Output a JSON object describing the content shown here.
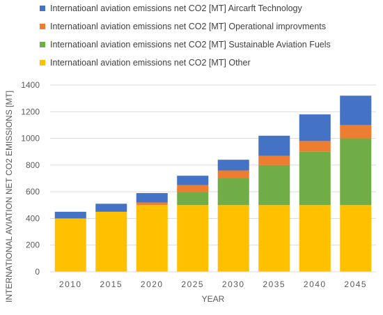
{
  "chart_data": {
    "type": "bar",
    "stacked": true,
    "categories": [
      "2010",
      "2015",
      "2020",
      "2025",
      "2030",
      "2035",
      "2040",
      "2045"
    ],
    "series": [
      {
        "name": "Internatioanl aviation emissions net CO2 [MT] Other",
        "color": "#FFC000",
        "values": [
          400,
          450,
          500,
          500,
          500,
          500,
          500,
          500
        ]
      },
      {
        "name": "Internatioanl aviation emissions net CO2 [MT] Sustainable Aviation Fuels",
        "color": "#70AD47",
        "values": [
          0,
          0,
          0,
          100,
          200,
          300,
          400,
          500
        ]
      },
      {
        "name": "Internatioanl aviation emissions net CO2 [MT] Operational improvments",
        "color": "#ED7D31",
        "values": [
          0,
          0,
          20,
          50,
          60,
          70,
          80,
          100
        ]
      },
      {
        "name": "Internatioanl aviation emissions net CO2 [MT] Aircarft Technology",
        "color": "#4472C4",
        "values": [
          50,
          60,
          70,
          70,
          80,
          150,
          200,
          220
        ]
      }
    ],
    "legend_order": [
      3,
      2,
      1,
      0
    ],
    "xlabel": "YEAR",
    "ylabel": "INTERNATIONAL AVIATION NET CO2 EMISSIONS [MT]",
    "ylim": [
      0,
      1400
    ],
    "yticks": [
      0,
      200,
      400,
      600,
      800,
      1000,
      1200,
      1400
    ],
    "grid": true,
    "legend_position": "top"
  }
}
